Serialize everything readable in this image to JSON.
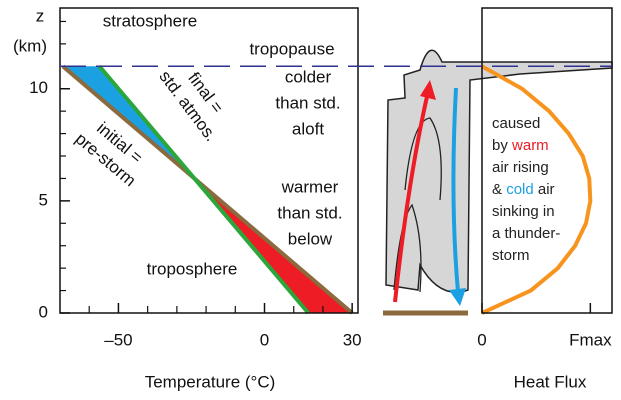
{
  "chart_data": [
    {
      "type": "line",
      "xlabel": "Temperature (°C)",
      "ylabel": "z",
      "ylabel_unit": "(km)",
      "xlim": [
        -70,
        32
      ],
      "ylim": [
        0,
        13.6
      ],
      "xticks": [
        {
          "value": -50,
          "label": "–50"
        },
        0,
        30
      ],
      "xminorticks": [
        -60,
        -40,
        -30,
        -20,
        -10,
        10,
        20
      ],
      "yticks": [
        0,
        5,
        10
      ],
      "yminorticks": [
        1,
        2,
        3,
        4,
        6,
        7,
        8,
        9,
        11,
        12,
        13
      ],
      "tropopause": 11,
      "series": [
        {
          "name": "initial = pre-storm",
          "lines": [
            "initial =",
            "pre-storm"
          ],
          "color": "#8b6a3e",
          "x": [
            -69,
            30
          ],
          "values": [
            11,
            0
          ]
        },
        {
          "name": "final = std. atmos.",
          "lines": [
            "final =",
            "std. atmos."
          ],
          "color": "#2aa63a",
          "x": [
            -56.5,
            15
          ],
          "values": [
            11,
            0
          ]
        }
      ],
      "fills": {
        "colder": "#1ba1e2",
        "warmer": "#ee1c25"
      },
      "annotations": [
        {
          "lines": [
            "stratosphere"
          ],
          "color": "#2e3192"
        },
        {
          "lines": [
            "tropopause"
          ],
          "color": "#2e3192"
        },
        {
          "lines": [
            "colder",
            "than std.",
            "aloft"
          ],
          "color": "#1ba1e2"
        },
        {
          "lines": [
            "warmer",
            "than std.",
            "below"
          ],
          "color": "#ee1c25"
        },
        {
          "lines": [
            "troposphere"
          ],
          "color": "#2e3192"
        }
      ]
    },
    {
      "type": "line",
      "xlabel": "Heat Flux",
      "xlim": [
        0,
        1.2
      ],
      "ylim": [
        0,
        13.6
      ],
      "xticks": [
        0,
        {
          "value": 1,
          "label": "Fmax"
        }
      ],
      "series": [
        {
          "color": "#f7941d",
          "x": [
            0,
            0.45,
            0.7,
            0.86,
            0.96,
            1.0,
            0.99,
            0.93,
            0.8,
            0.62,
            0.37,
            0
          ],
          "values": [
            0,
            1,
            2,
            3,
            4,
            5,
            6,
            7,
            8,
            9,
            10,
            11
          ]
        }
      ],
      "note": [
        [
          {
            "text": "caused",
            "color": "#222"
          }
        ],
        [
          {
            "text": "by ",
            "color": "#222"
          },
          {
            "text": "warm",
            "color": "#ee1c25"
          }
        ],
        [
          {
            "text": "air rising",
            "color": "#222"
          }
        ],
        [
          {
            "text": "& ",
            "color": "#222"
          },
          {
            "text": "cold",
            "color": "#1ba1e2"
          },
          {
            "text": " air",
            "color": "#222"
          }
        ],
        [
          {
            "text": "sinking in",
            "color": "#222"
          }
        ],
        [
          {
            "text": "a thunder-",
            "color": "#222"
          }
        ],
        [
          {
            "text": "storm",
            "color": "#222"
          }
        ]
      ]
    }
  ]
}
